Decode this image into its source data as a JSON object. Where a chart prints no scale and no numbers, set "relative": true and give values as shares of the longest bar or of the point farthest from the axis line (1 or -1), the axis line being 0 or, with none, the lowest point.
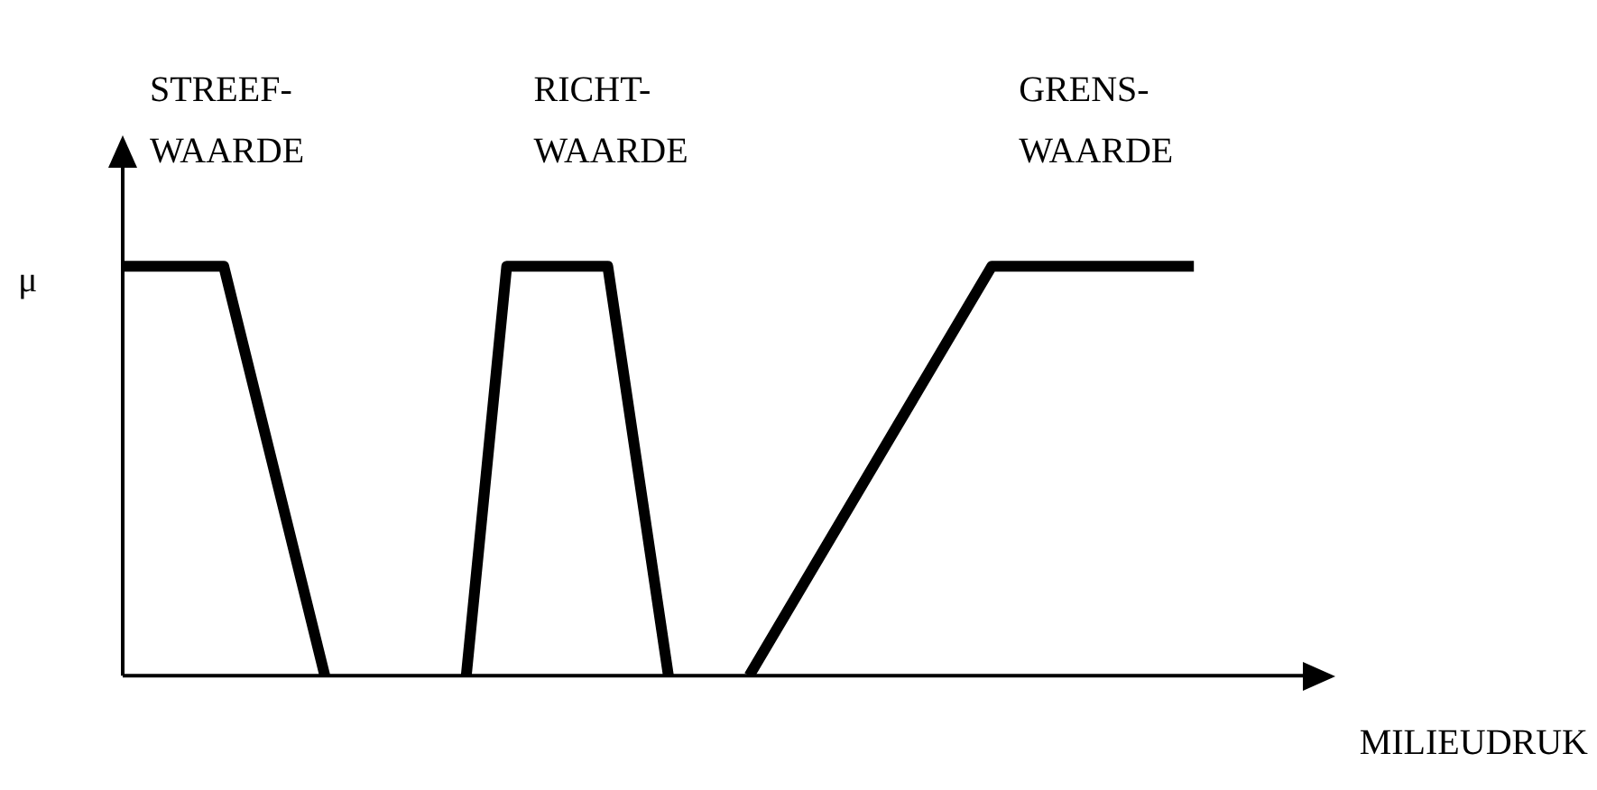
{
  "chart_data": {
    "type": "line",
    "relative": true,
    "ylabel": "μ",
    "xlabel": "MILIEUDRUK",
    "grid": false,
    "legend": false,
    "marker": "none",
    "line_style": "solid",
    "categories": [
      null,
      null,
      null,
      null,
      null,
      null,
      null,
      null,
      null,
      null,
      null,
      null,
      null,
      null,
      null,
      null,
      null,
      null,
      null,
      null,
      null,
      null,
      null,
      null,
      null,
      null,
      null,
      null,
      null,
      null,
      null,
      null,
      null,
      null,
      null,
      null,
      null,
      null,
      null,
      null,
      null,
      null,
      null,
      null,
      null,
      null,
      null,
      null,
      null,
      null,
      null,
      null,
      null,
      null,
      null,
      null,
      null,
      null,
      null,
      null,
      null
    ],
    "series": [
      {
        "name": "STREEF-WAARDE",
        "color": "#000000",
        "values": [
          1,
          null,
          null,
          null,
          null,
          1,
          null,
          null,
          null,
          null,
          0,
          null,
          null,
          null,
          null,
          null,
          null,
          null,
          null,
          null,
          null,
          null,
          null,
          null,
          null,
          null,
          null,
          null,
          null,
          null,
          null,
          null,
          null,
          null,
          null,
          null,
          null,
          null,
          null,
          null,
          null,
          null,
          null,
          null,
          null,
          null,
          null,
          null,
          null,
          null,
          null,
          null,
          null,
          null,
          null,
          null,
          null,
          null,
          null,
          null,
          null
        ]
      },
      {
        "name": "RICHT-WAARDE",
        "color": "#000000",
        "values": [
          null,
          null,
          null,
          null,
          null,
          null,
          null,
          null,
          null,
          null,
          null,
          null,
          null,
          null,
          null,
          null,
          null,
          0,
          null,
          1,
          null,
          null,
          null,
          null,
          1,
          null,
          null,
          0,
          null,
          null,
          null,
          null,
          null,
          null,
          null,
          null,
          null,
          null,
          null,
          null,
          null,
          null,
          null,
          null,
          null,
          null,
          null,
          null,
          null,
          null,
          null,
          null,
          null,
          null,
          null,
          null,
          null,
          null,
          null,
          null,
          null
        ]
      },
      {
        "name": "GRENS-WAARDE",
        "color": "#000000",
        "values": [
          null,
          null,
          null,
          null,
          null,
          null,
          null,
          null,
          null,
          null,
          null,
          null,
          null,
          null,
          null,
          null,
          null,
          null,
          null,
          null,
          null,
          null,
          null,
          null,
          null,
          null,
          null,
          null,
          null,
          null,
          null,
          0,
          null,
          null,
          null,
          null,
          null,
          null,
          null,
          null,
          null,
          null,
          null,
          1,
          null,
          null,
          null,
          null,
          null,
          null,
          null,
          null,
          null,
          1,
          null,
          null,
          null,
          null,
          null,
          null,
          null
        ]
      }
    ]
  }
}
